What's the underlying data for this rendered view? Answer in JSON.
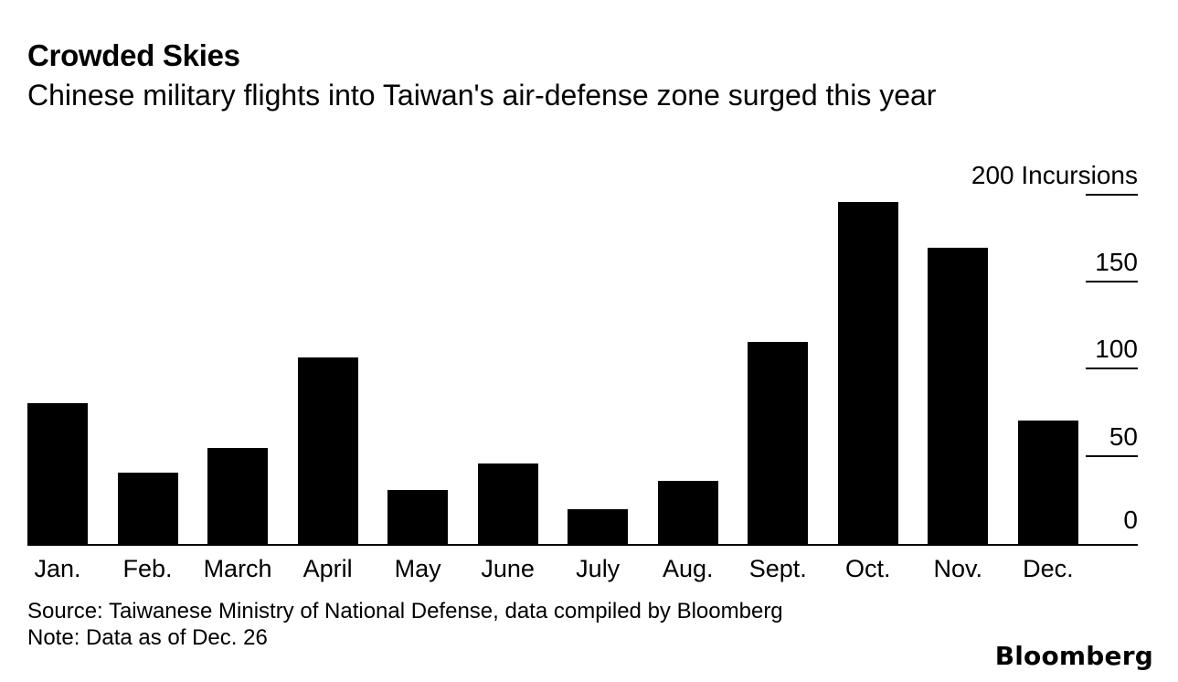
{
  "header": {
    "title": "Crowded Skies",
    "subtitle": "Chinese military flights into Taiwan's air-defense zone surged this year"
  },
  "chart_data": {
    "type": "bar",
    "title": "Crowded Skies",
    "subtitle": "Chinese military flights into Taiwan's air-defense zone surged this year",
    "categories": [
      "Jan.",
      "Feb.",
      "March",
      "April",
      "May",
      "June",
      "July",
      "Aug.",
      "Sept.",
      "Oct.",
      "Nov.",
      "Dec."
    ],
    "values": [
      81,
      41,
      55,
      107,
      31,
      46,
      20,
      36,
      116,
      196,
      170,
      71
    ],
    "unit_label": "Incursions",
    "y_ticks": [
      0,
      50,
      100,
      150,
      200
    ],
    "ylim": [
      0,
      215
    ],
    "xlabel": "",
    "ylabel": "Incursions",
    "axis_position": "right",
    "grid": false,
    "bar_color": "#000000"
  },
  "footer": {
    "source": "Source: Taiwanese Ministry of National Defense, data compiled by Bloomberg",
    "note": "Note: Data as of Dec. 26",
    "brand": "Bloomberg"
  }
}
